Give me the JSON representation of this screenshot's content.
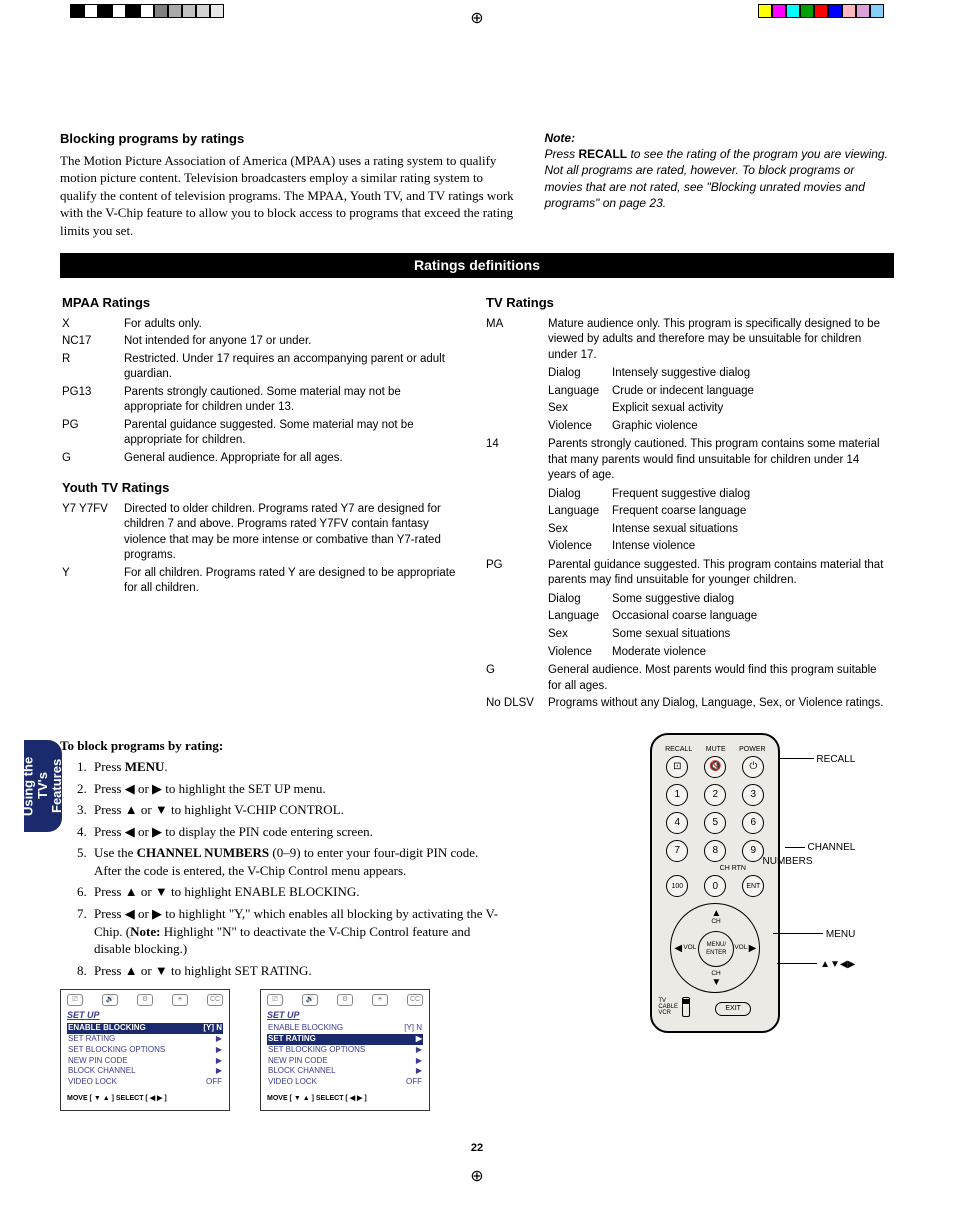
{
  "header": {
    "title": "Blocking programs by ratings",
    "intro": "The Motion Picture Association of America (MPAA) uses a rating system to qualify motion picture content. Television broadcasters employ a similar rating system to qualify the content of television programs. The MPAA, Youth TV, and TV ratings work with the V-Chip feature to allow you to block access to programs that exceed the rating limits you set.",
    "note_label": "Note:",
    "note_pre": "Press ",
    "note_strong": "RECALL",
    "note_post": " to see the rating of the program you are viewing. Not all programs are rated, however. To block programs or movies that are not rated, see \"Blocking unrated movies and programs\" on page 23."
  },
  "ratings_header": "Ratings definitions",
  "mpaa": {
    "title": "MPAA Ratings",
    "rows": [
      {
        "c": "X",
        "d": "For adults only."
      },
      {
        "c": "NC17",
        "d": "Not intended for anyone 17 or under."
      },
      {
        "c": "R",
        "d": "Restricted. Under 17 requires an accompanying parent or adult guardian."
      },
      {
        "c": "PG13",
        "d": "Parents strongly cautioned. Some material may not be appropriate for children under 13."
      },
      {
        "c": "PG",
        "d": "Parental guidance suggested. Some material may not be appropriate for children."
      },
      {
        "c": "G",
        "d": "General audience. Appropriate for all ages."
      }
    ]
  },
  "youth": {
    "title": "Youth TV Ratings",
    "rows": [
      {
        "c": "Y7 Y7FV",
        "d": "Directed to older children. Programs rated Y7 are designed for children 7 and above. Programs rated Y7FV contain fantasy violence that may be more intense or combative than Y7-rated programs."
      },
      {
        "c": "Y",
        "d": "For all children. Programs rated Y are designed to be appropriate for all children."
      }
    ]
  },
  "tv": {
    "title": "TV Ratings",
    "groups": [
      {
        "c": "MA",
        "d": "Mature audience only. This program is specifically designed to be viewed by adults and therefore may be unsuitable for children under 17.",
        "sub": [
          {
            "c": "Dialog",
            "d": "Intensely suggestive dialog"
          },
          {
            "c": "Language",
            "d": "Crude or indecent language"
          },
          {
            "c": "Sex",
            "d": "Explicit sexual activity"
          },
          {
            "c": "Violence",
            "d": "Graphic violence"
          }
        ]
      },
      {
        "c": "14",
        "d": "Parents strongly cautioned. This program contains some material that many parents would find unsuitable for children under 14 years of age.",
        "sub": [
          {
            "c": "Dialog",
            "d": "Frequent suggestive dialog"
          },
          {
            "c": "Language",
            "d": "Frequent coarse language"
          },
          {
            "c": "Sex",
            "d": "Intense sexual situations"
          },
          {
            "c": "Violence",
            "d": "Intense violence"
          }
        ]
      },
      {
        "c": "PG",
        "d": "Parental guidance suggested. This program contains material that parents may find unsuitable for younger children.",
        "sub": [
          {
            "c": "Dialog",
            "d": "Some suggestive dialog"
          },
          {
            "c": "Language",
            "d": "Occasional coarse language"
          },
          {
            "c": "Sex",
            "d": "Some sexual situations"
          },
          {
            "c": "Violence",
            "d": "Moderate violence"
          }
        ]
      },
      {
        "c": "G",
        "d": "General audience. Most parents would find this program suitable for all ages.",
        "sub": []
      },
      {
        "c": "No DLSV",
        "d": "Programs without any Dialog, Language, Sex, or Violence ratings.",
        "sub": []
      }
    ]
  },
  "side_tab": {
    "l1": "Using the TV's",
    "l2": "Features"
  },
  "steps": {
    "hdr": "To block programs by rating:",
    "items": [
      "Press <b>MENU</b>.",
      "Press ◀ or ▶ to highlight the SET UP menu.",
      "Press ▲ or ▼ to highlight V-CHIP CONTROL.",
      "Press ◀ or ▶ to display the PIN code entering screen.",
      "Use the <b>CHANNEL NUMBERS</b> (0–9) to enter your four-digit PIN code. After the code is entered, the V-Chip Control menu appears.",
      "Press ▲ or ▼ to highlight ENABLE BLOCKING.",
      "Press ◀ or ▶ to highlight \"Y,\" which enables all blocking by activating the V-Chip. (<b>Note:</b>  Highlight \"N\" to deactivate the V-Chip Control feature and disable blocking.)",
      "Press ▲ or ▼ to highlight SET RATING."
    ]
  },
  "osd": {
    "title": "SET UP",
    "rows": [
      {
        "l": "ENABLE BLOCKING",
        "r": "[Y] N"
      },
      {
        "l": "SET RATING",
        "r": "▶"
      },
      {
        "l": "SET BLOCKING OPTIONS",
        "r": "▶"
      },
      {
        "l": "NEW PIN CODE",
        "r": "▶"
      },
      {
        "l": "BLOCK CHANNEL",
        "r": "▶"
      },
      {
        "l": "VIDEO LOCK",
        "r": "OFF"
      }
    ],
    "foot": "MOVE [ ▼ ▲ ]     SELECT [ ◀  ▶ ]",
    "hl1": 0,
    "hl2": 1
  },
  "remote": {
    "labels_top": [
      "RECALL",
      "MUTE",
      "POWER"
    ],
    "nums": [
      [
        "1",
        "2",
        "3"
      ],
      [
        "4",
        "5",
        "6"
      ],
      [
        "7",
        "8",
        "9"
      ],
      [
        "100",
        "0",
        "ENT"
      ]
    ],
    "chrtn": "CH RTN",
    "dpad": {
      "up": "▲",
      "down": "▼",
      "left": "◀",
      "right": "▶",
      "ch": "CH",
      "vol": "VOL",
      "center1": "MENU/",
      "center2": "ENTER"
    },
    "exit": "EXIT",
    "sw": [
      "TV",
      "CABLE",
      "VCR"
    ]
  },
  "callouts": {
    "recall": "RECALL",
    "channel": "CHANNEL\nNUMBERS",
    "menu": "MENU",
    "arrows": "▲▼◀▶"
  },
  "pagenum": "22",
  "colorbars": {
    "left": [
      "#000",
      "#fff",
      "#000",
      "#fff",
      "#000",
      "#fff",
      "#808080",
      "#a9a9a9",
      "#c0c0c0",
      "#d3d3d3",
      "#e8e8e8"
    ],
    "right": [
      "#ffff00",
      "#ff00ff",
      "#00ffff",
      "#00a000",
      "#ff0000",
      "#0000ff",
      "#ffb6c1",
      "#dda0dd",
      "#87cefa"
    ]
  }
}
